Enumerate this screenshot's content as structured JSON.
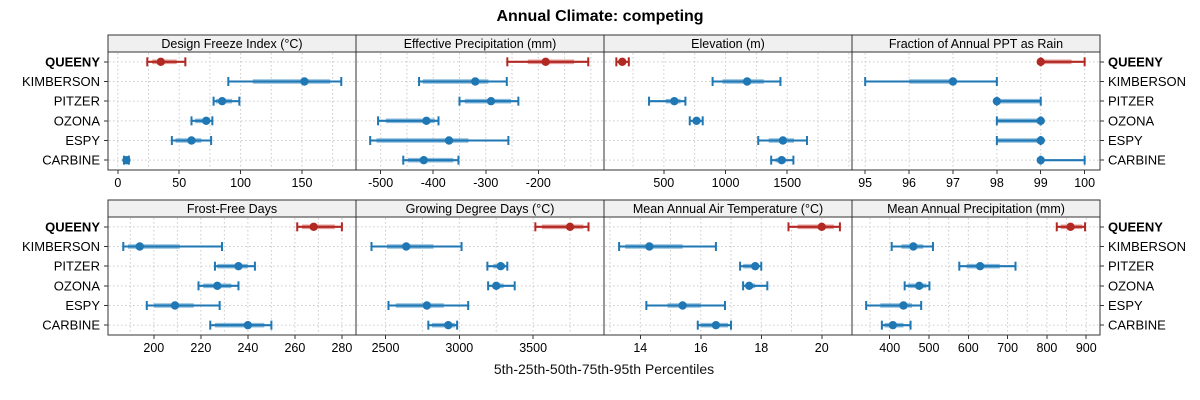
{
  "title": "Annual Climate: competing",
  "axis_caption": "5th-25th-50th-75th-95th Percentiles",
  "stations": [
    "QUEENY",
    "KIMBERSON",
    "PITZER",
    "OZONA",
    "ESPY",
    "CARBINE"
  ],
  "highlight_station": "QUEENY",
  "percentile_labels": [
    "5th",
    "25th",
    "50th",
    "75th",
    "95th"
  ],
  "colors": {
    "highlight": "#b22823",
    "highlight_band": "#e39c97",
    "normal": "#1f77b4",
    "normal_band": "#8abbdd",
    "grid": "#c9c9c9",
    "header_bg": "#f0f0f0",
    "border": "#333333",
    "text": "#000000"
  },
  "chart_data": {
    "type": "percentile-dotplot",
    "layout": {
      "rows": 2,
      "cols": 4,
      "legend": "none",
      "grid": "dotted"
    },
    "row_axis_note": "each panel shows 5th-25th-50th-75th-95th percentiles per station",
    "panels": [
      {
        "title": "Design Freeze Index (°C)",
        "xlim": [
          -8,
          194
        ],
        "ticks": [
          0,
          50,
          100,
          150
        ],
        "grid_step": 25,
        "series": [
          {
            "station": "QUEENY",
            "p": [
              24,
              28,
              35,
              48,
              55
            ]
          },
          {
            "station": "KIMBERSON",
            "p": [
              90,
              110,
              152,
              173,
              182
            ]
          },
          {
            "station": "PITZER",
            "p": [
              78,
              80,
              85,
              93,
              99
            ]
          },
          {
            "station": "OZONA",
            "p": [
              60,
              63,
              72,
              75,
              77
            ]
          },
          {
            "station": "ESPY",
            "p": [
              44,
              47,
              60,
              68,
              76
            ]
          },
          {
            "station": "CARBINE",
            "p": [
              5,
              6,
              7,
              8,
              9
            ]
          }
        ]
      },
      {
        "title": "Effective Precipitation (mm)",
        "xlim": [
          -547,
          -75
        ],
        "ticks": [
          -500,
          -400,
          -300,
          -200
        ],
        "grid_step": 50,
        "series": [
          {
            "station": "QUEENY",
            "p": [
              -259,
              -220,
              -186,
              -132,
              -105
            ]
          },
          {
            "station": "KIMBERSON",
            "p": [
              -427,
              -420,
              -320,
              -295,
              -260
            ]
          },
          {
            "station": "PITZER",
            "p": [
              -350,
              -340,
              -290,
              -252,
              -238
            ]
          },
          {
            "station": "OZONA",
            "p": [
              -505,
              -490,
              -413,
              -397,
              -390
            ]
          },
          {
            "station": "ESPY",
            "p": [
              -520,
              -508,
              -370,
              -333,
              -257
            ]
          },
          {
            "station": "CARBINE",
            "p": [
              -457,
              -448,
              -418,
              -362,
              -352
            ]
          }
        ]
      },
      {
        "title": "Elevation (m)",
        "xlim": [
          15,
          2025
        ],
        "ticks": [
          500,
          1000,
          1500
        ],
        "grid_step": 250,
        "series": [
          {
            "station": "QUEENY",
            "p": [
              115,
              135,
              163,
              190,
              216
            ]
          },
          {
            "station": "KIMBERSON",
            "p": [
              895,
              975,
              1175,
              1310,
              1445
            ]
          },
          {
            "station": "PITZER",
            "p": [
              380,
              515,
              585,
              635,
              675
            ]
          },
          {
            "station": "OZONA",
            "p": [
              710,
              745,
              765,
              785,
              815
            ]
          },
          {
            "station": "ESPY",
            "p": [
              1265,
              1350,
              1465,
              1555,
              1660
            ]
          },
          {
            "station": "CARBINE",
            "p": [
              1370,
              1405,
              1455,
              1490,
              1550
            ]
          }
        ]
      },
      {
        "title": "Fraction of Annual PPT as Rain",
        "xlim": [
          94.7,
          100.35
        ],
        "ticks": [
          95,
          96,
          97,
          98,
          99,
          100
        ],
        "grid_step": 1,
        "series": [
          {
            "station": "QUEENY",
            "p": [
              99,
              99,
              99,
              99.7,
              100
            ]
          },
          {
            "station": "KIMBERSON",
            "p": [
              95,
              96,
              97,
              97,
              98
            ]
          },
          {
            "station": "PITZER",
            "p": [
              98,
              98,
              98,
              99,
              99
            ]
          },
          {
            "station": "OZONA",
            "p": [
              98,
              98,
              99,
              99,
              99
            ]
          },
          {
            "station": "ESPY",
            "p": [
              98,
              98,
              99,
              99,
              99
            ]
          },
          {
            "station": "CARBINE",
            "p": [
              99,
              99,
              99,
              99,
              100
            ]
          }
        ]
      },
      {
        "title": "Frost-Free Days",
        "xlim": [
          180.5,
          286
        ],
        "ticks": [
          200,
          220,
          240,
          260,
          280
        ],
        "grid_step": 10,
        "series": [
          {
            "station": "QUEENY",
            "p": [
              261,
              263,
              268,
              277,
              280
            ]
          },
          {
            "station": "KIMBERSON",
            "p": [
              187,
              189,
              194,
              211,
              229
            ]
          },
          {
            "station": "PITZER",
            "p": [
              226,
              227,
              236,
              240,
              243
            ]
          },
          {
            "station": "OZONA",
            "p": [
              219,
              221,
              227,
              233,
              236
            ]
          },
          {
            "station": "ESPY",
            "p": [
              197,
              200,
              209,
              217,
              228
            ]
          },
          {
            "station": "CARBINE",
            "p": [
              224,
              226,
              240,
              247,
              250
            ]
          }
        ]
      },
      {
        "title": "Growing Degree Days (°C)",
        "xlim": [
          2300,
          3980
        ],
        "ticks": [
          2500,
          3000,
          3500
        ],
        "grid_step": 250,
        "series": [
          {
            "station": "QUEENY",
            "p": [
              3515,
              3560,
              3750,
              3840,
              3875
            ]
          },
          {
            "station": "KIMBERSON",
            "p": [
              2405,
              2510,
              2640,
              2825,
              3015
            ]
          },
          {
            "station": "PITZER",
            "p": [
              3190,
              3230,
              3280,
              3310,
              3325
            ]
          },
          {
            "station": "OZONA",
            "p": [
              3195,
              3225,
              3250,
              3300,
              3375
            ]
          },
          {
            "station": "ESPY",
            "p": [
              2520,
              2570,
              2780,
              2895,
              3060
            ]
          },
          {
            "station": "CARBINE",
            "p": [
              2790,
              2815,
              2925,
              2970,
              2985
            ]
          }
        ]
      },
      {
        "title": "Mean Annual Air Temperature (°C)",
        "xlim": [
          12.8,
          21.0
        ],
        "ticks": [
          14,
          16,
          18,
          20
        ],
        "grid_step": 1,
        "series": [
          {
            "station": "QUEENY",
            "p": [
              18.9,
              19.2,
              20.0,
              20.4,
              20.6
            ]
          },
          {
            "station": "KIMBERSON",
            "p": [
              13.3,
              13.5,
              14.3,
              15.4,
              16.5
            ]
          },
          {
            "station": "PITZER",
            "p": [
              17.3,
              17.4,
              17.8,
              17.9,
              18.0
            ]
          },
          {
            "station": "OZONA",
            "p": [
              17.4,
              17.5,
              17.6,
              17.8,
              18.2
            ]
          },
          {
            "station": "ESPY",
            "p": [
              14.2,
              14.9,
              15.4,
              16.0,
              16.8
            ]
          },
          {
            "station": "CARBINE",
            "p": [
              15.9,
              16.0,
              16.5,
              16.9,
              17.0
            ]
          }
        ]
      },
      {
        "title": "Mean Annual Precipitation (mm)",
        "xlim": [
          304,
          935
        ],
        "ticks": [
          400,
          500,
          600,
          700,
          800,
          900
        ],
        "grid_step": 50,
        "series": [
          {
            "station": "QUEENY",
            "p": [
              825,
              835,
              860,
              890,
              897
            ]
          },
          {
            "station": "KIMBERSON",
            "p": [
              405,
              430,
              460,
              485,
              510
            ]
          },
          {
            "station": "PITZER",
            "p": [
              577,
              596,
              630,
              680,
              720
            ]
          },
          {
            "station": "OZONA",
            "p": [
              438,
              446,
              475,
              493,
              501
            ]
          },
          {
            "station": "ESPY",
            "p": [
              340,
              376,
              435,
              457,
              480
            ]
          },
          {
            "station": "CARBINE",
            "p": [
              380,
              387,
              408,
              435,
              453
            ]
          }
        ]
      }
    ]
  }
}
